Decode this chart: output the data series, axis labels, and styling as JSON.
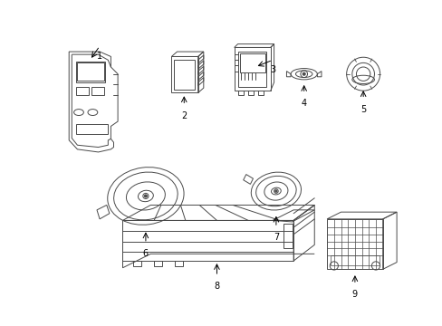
{
  "bg_color": "#ffffff",
  "line_color": "#4a4a4a",
  "lw": 0.7,
  "fig_width": 4.89,
  "fig_height": 3.6,
  "dpi": 100
}
